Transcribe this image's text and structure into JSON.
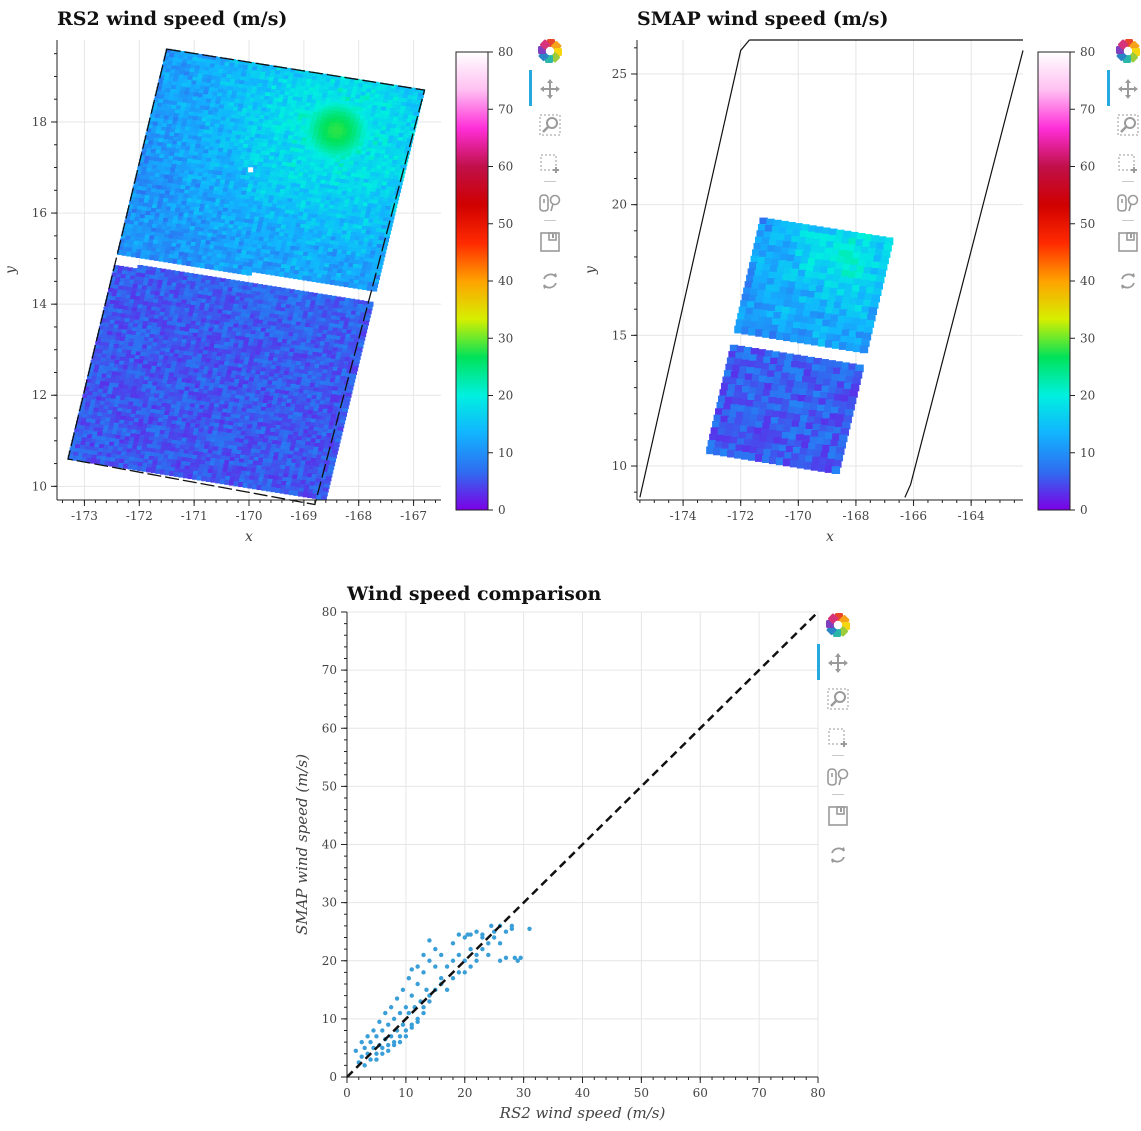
{
  "colors": {
    "scatter": "#3a9fd8",
    "grid": "#e6e6e6",
    "toolbar_active": "#26a9e0",
    "colormap_stops": [
      "#7b00e5",
      "#2f6df0",
      "#12b3ff",
      "#00f0e0",
      "#00e25a",
      "#d6ef00",
      "#ffa200",
      "#ff2a00",
      "#cf0000",
      "#c0104a",
      "#ff2ed8",
      "#ffbff2",
      "#ffffff"
    ]
  },
  "toolbar": {
    "tools": [
      "bokeh-logo-icon",
      "pan-icon",
      "wheel-zoom-icon",
      "box-zoom-icon",
      "hover-icon",
      "save-icon",
      "reset-icon"
    ]
  },
  "chart_data": [
    {
      "type": "heatmap",
      "title": "RS2 wind speed (m/s)",
      "xlabel": "x",
      "ylabel": "y",
      "xlim": [
        -173.5,
        -166.5
      ],
      "ylim": [
        9.7,
        19.8
      ],
      "x_ticks": [
        -173,
        -172,
        -171,
        -170,
        -169,
        -168,
        -167
      ],
      "y_ticks": [
        10,
        12,
        14,
        16,
        18
      ],
      "grid": true,
      "swath_corners": [
        [
          -171.5,
          19.6
        ],
        [
          -166.8,
          18.7
        ],
        [
          -168.8,
          9.6
        ],
        [
          -173.3,
          10.6
        ]
      ],
      "data_gap": {
        "left_start": [
          -172.4,
          15.1
        ],
        "right_start": [
          -168.0,
          14.3
        ]
      },
      "background_speed": [
        3,
        8
      ],
      "cyclone_center": [
        -168.4,
        17.8
      ],
      "cyclone_max_speed": 28,
      "colorbar": {
        "ticks": [
          0,
          10,
          20,
          30,
          40,
          50,
          60,
          70,
          80
        ],
        "range": [
          0,
          80
        ]
      }
    },
    {
      "type": "heatmap",
      "title": "SMAP wind speed (m/s)",
      "xlabel": "x",
      "ylabel": "y",
      "xlim": [
        -175.6,
        -162.2
      ],
      "ylim": [
        8.7,
        26.3
      ],
      "x_ticks": [
        -174,
        -172,
        -170,
        -168,
        -166,
        -164
      ],
      "y_ticks": [
        10,
        15,
        20,
        25
      ],
      "grid": true,
      "swath_outline": [
        [
          [
            -175.5,
            8.8
          ],
          [
            -172.0,
            25.9
          ],
          [
            -171.7,
            26.3
          ]
        ],
        [
          [
            -166.3,
            8.8
          ],
          [
            -166.1,
            9.3
          ],
          [
            -162.2,
            25.9
          ]
        ]
      ],
      "data_patch_corners": [
        [
          -171.3,
          19.5
        ],
        [
          -166.7,
          18.7
        ],
        [
          -168.6,
          9.8
        ],
        [
          -173.2,
          10.5
        ]
      ],
      "data_gap": {
        "left_start": [
          -172.0,
          15.0
        ],
        "right_start": [
          -167.8,
          14.2
        ]
      },
      "background_speed": [
        3,
        9
      ],
      "cyclone_center": [
        -168.3,
        18.0
      ],
      "cyclone_max_speed": 22,
      "colorbar": {
        "ticks": [
          0,
          10,
          20,
          30,
          40,
          50,
          60,
          70,
          80
        ],
        "range": [
          0,
          80
        ]
      }
    },
    {
      "type": "scatter",
      "title": "Wind speed comparison",
      "xlabel": "RS2 wind speed (m/s)",
      "ylabel": "SMAP wind speed (m/s)",
      "xlim": [
        0,
        80
      ],
      "ylim": [
        0,
        80
      ],
      "x_ticks": [
        0,
        10,
        20,
        30,
        40,
        50,
        60,
        70,
        80
      ],
      "y_ticks": [
        0,
        10,
        20,
        30,
        40,
        50,
        60,
        70,
        80
      ],
      "grid": true,
      "reference_line": {
        "from": [
          0,
          0
        ],
        "to": [
          80,
          80
        ],
        "style": "dashed"
      },
      "points": [
        [
          1.5,
          4.5
        ],
        [
          2,
          2.5
        ],
        [
          2.5,
          3.5
        ],
        [
          3,
          5
        ],
        [
          3,
          2
        ],
        [
          3.5,
          4
        ],
        [
          4,
          6
        ],
        [
          4,
          3
        ],
        [
          4.5,
          5
        ],
        [
          5,
          7
        ],
        [
          5,
          4
        ],
        [
          5.5,
          5.5
        ],
        [
          6,
          8
        ],
        [
          6,
          5
        ],
        [
          6.5,
          6.5
        ],
        [
          7,
          9
        ],
        [
          7,
          5.5
        ],
        [
          7.5,
          7
        ],
        [
          8,
          10
        ],
        [
          8,
          6
        ],
        [
          8.5,
          8
        ],
        [
          9,
          11
        ],
        [
          9,
          7
        ],
        [
          9.5,
          9
        ],
        [
          10,
          12
        ],
        [
          10,
          8
        ],
        [
          10.5,
          11
        ],
        [
          11,
          14
        ],
        [
          11,
          9
        ],
        [
          11.5,
          12
        ],
        [
          12,
          16
        ],
        [
          12,
          10
        ],
        [
          12.5,
          13
        ],
        [
          13,
          18
        ],
        [
          13,
          12
        ],
        [
          13.5,
          15
        ],
        [
          14,
          20
        ],
        [
          14,
          14
        ],
        [
          15,
          19
        ],
        [
          15,
          22
        ],
        [
          16,
          17
        ],
        [
          16,
          21
        ],
        [
          17,
          19
        ],
        [
          18,
          23
        ],
        [
          18,
          20
        ],
        [
          19,
          21
        ],
        [
          20,
          24
        ],
        [
          20,
          18
        ],
        [
          21,
          22
        ],
        [
          22,
          25
        ],
        [
          22,
          20
        ],
        [
          23,
          24
        ],
        [
          24,
          21
        ],
        [
          25,
          25
        ],
        [
          26,
          20
        ],
        [
          27,
          25
        ],
        [
          28,
          26
        ],
        [
          29,
          20
        ],
        [
          31,
          25.5
        ],
        [
          2.5,
          6
        ],
        [
          3.5,
          7
        ],
        [
          4.5,
          8
        ],
        [
          5.5,
          9.5
        ],
        [
          6.5,
          11
        ],
        [
          7.5,
          12
        ],
        [
          8.5,
          13.5
        ],
        [
          9.5,
          15
        ],
        [
          10.5,
          17
        ],
        [
          11,
          18.5
        ],
        [
          12,
          19
        ],
        [
          13,
          21
        ],
        [
          14,
          23.5
        ],
        [
          5,
          3
        ],
        [
          6,
          4
        ],
        [
          7,
          4.5
        ],
        [
          8,
          5.5
        ],
        [
          9,
          6
        ],
        [
          10,
          7
        ],
        [
          11,
          8.5
        ],
        [
          12,
          9.5
        ],
        [
          13,
          11
        ],
        [
          14,
          13
        ],
        [
          15,
          15
        ],
        [
          16,
          16
        ],
        [
          17,
          15
        ],
        [
          18,
          17
        ],
        [
          19,
          18
        ],
        [
          20,
          20
        ],
        [
          21,
          19
        ],
        [
          22,
          21
        ],
        [
          23,
          22
        ],
        [
          24,
          23
        ],
        [
          25,
          24
        ],
        [
          26,
          23
        ],
        [
          19,
          24.5
        ],
        [
          20.5,
          24.5
        ],
        [
          21,
          24.5
        ],
        [
          23,
          24.5
        ],
        [
          24.5,
          26
        ],
        [
          26,
          26
        ],
        [
          28,
          25.5
        ],
        [
          29.5,
          20.5
        ],
        [
          27,
          20.5
        ],
        [
          28.5,
          20.5
        ]
      ]
    }
  ]
}
